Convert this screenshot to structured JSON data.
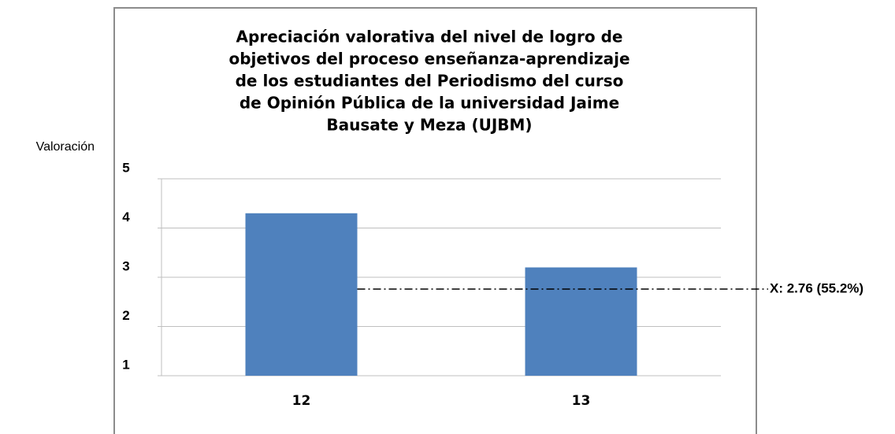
{
  "chart_data": {
    "type": "bar",
    "title": [
      "Apreciación valorativa del nivel de logro de",
      "objetivos del proceso enseñanza-aprendizaje",
      "de los estudiantes del Periodismo del curso",
      "de Opinión Pública de la universidad Jaime",
      "Bausate y Meza (UJBM)"
    ],
    "y_label": "Valoración",
    "categories": [
      "12",
      "13"
    ],
    "values": [
      4.3,
      3.2
    ],
    "color": "#4f81bd",
    "ylim": [
      1,
      5
    ],
    "yticks": [
      1,
      2,
      3,
      4,
      5
    ],
    "grid": true,
    "annotation": {
      "text": "X: 2.76 (55.2%)",
      "value": 2.76
    }
  }
}
